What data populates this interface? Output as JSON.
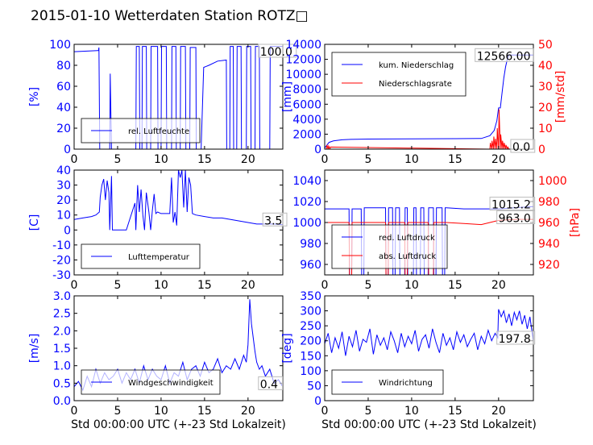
{
  "figure": {
    "title": "2015-01-10 Wetterdaten Station ROTZ□"
  },
  "chart_data": [
    {
      "id": "p1",
      "type": "line",
      "title": "",
      "xlabel": "",
      "xlim": [
        0,
        24
      ],
      "xticks": [
        0,
        5,
        10,
        15,
        20
      ],
      "ylabel": "[%]",
      "ylim": [
        0,
        100
      ],
      "yticks": [
        0,
        20,
        40,
        60,
        80,
        100
      ],
      "annotations": [
        {
          "text": "100.0",
          "x": 21.2,
          "y": 100
        }
      ],
      "legend": {
        "position": "bottom-left",
        "entries": [
          "rel. Luftfeuchte"
        ]
      },
      "series": [
        {
          "name": "rel. Luftfeuchte",
          "color": "#0000ff",
          "x": [
            0,
            2.7,
            2.8,
            2.85,
            2.95,
            3.0,
            4.1,
            4.15,
            4.3,
            4.35,
            7.1,
            7.15,
            7.5,
            7.55,
            7.8,
            7.85,
            8.3,
            8.35,
            8.8,
            8.85,
            9.6,
            9.65,
            10.0,
            10.05,
            10.6,
            10.65,
            11.2,
            11.25,
            11.7,
            11.75,
            12.2,
            12.25,
            12.8,
            12.85,
            13.3,
            13.35,
            14.0,
            14.05,
            14.6,
            14.9,
            15.5,
            16.5,
            17.5,
            17.55,
            17.9,
            17.95,
            18.3,
            18.35,
            18.7,
            18.75,
            19.2,
            19.25,
            19.8,
            19.85,
            20.3,
            20.35,
            20.8,
            20.85,
            21.3,
            21.35,
            22.5,
            22.55,
            23.0,
            23.05,
            24
          ],
          "values": [
            93,
            94,
            94,
            97,
            0,
            0,
            0,
            72,
            0,
            0,
            0,
            98,
            98,
            0,
            0,
            98,
            98,
            0,
            0,
            98,
            98,
            0,
            0,
            98,
            98,
            0,
            0,
            98,
            98,
            0,
            0,
            98,
            98,
            0,
            0,
            97,
            97,
            0,
            0,
            78,
            80,
            84,
            85,
            0,
            0,
            98,
            98,
            0,
            0,
            98,
            98,
            0,
            0,
            98,
            98,
            0,
            0,
            98,
            98,
            0,
            0,
            98,
            98,
            98,
            98
          ]
        }
      ]
    },
    {
      "id": "p2",
      "type": "line",
      "title": "",
      "xlabel": "",
      "xlim": [
        0,
        24
      ],
      "xticks": [
        0,
        5,
        10,
        15,
        20
      ],
      "ylabel": "[mm]",
      "ylim": [
        0,
        14000
      ],
      "yticks": [
        0,
        2000,
        4000,
        6000,
        8000,
        10000,
        12000,
        14000
      ],
      "y2label": "[mm/std]",
      "y2lim": [
        0,
        50
      ],
      "y2ticks": [
        0,
        10,
        20,
        30,
        40,
        50
      ],
      "annotations": [
        {
          "text": "12566.00",
          "x": 17.3,
          "y": 12566
        },
        {
          "text": "0.0",
          "x": 21.4,
          "y": 0
        }
      ],
      "legend": {
        "position": "top-left",
        "entries": [
          "kum. Niederschlag",
          "Niederschlagsrate"
        ]
      },
      "series": [
        {
          "name": "kum. Niederschlag",
          "color": "#0000ff",
          "axis": "left",
          "x": [
            0,
            0.5,
            1,
            2,
            3,
            5,
            10,
            15,
            18,
            19,
            19.5,
            19.8,
            20.0,
            20.2,
            20.4,
            20.6,
            20.8,
            21.0,
            21.2,
            22,
            24
          ],
          "values": [
            150,
            900,
            1100,
            1250,
            1300,
            1350,
            1380,
            1400,
            1420,
            1800,
            2500,
            3800,
            5500,
            5500,
            7500,
            9500,
            11000,
            12000,
            12566,
            12566,
            12566
          ]
        },
        {
          "name": "Niederschlagsrate",
          "color": "#ff0000",
          "axis": "right",
          "x": [
            0,
            0.2,
            0.25,
            0.4,
            0.45,
            0.6,
            0.65,
            19.0,
            19.05,
            19.2,
            19.25,
            19.4,
            19.45,
            19.6,
            19.65,
            19.8,
            19.85,
            20.0,
            20.05,
            20.2,
            20.25,
            20.4,
            20.45,
            20.6,
            20.65,
            20.8,
            20.85,
            21.0,
            21.05,
            21.2,
            21.25,
            24
          ],
          "values": [
            0,
            0,
            2,
            0,
            1.5,
            0,
            1,
            0,
            3,
            0,
            4,
            0,
            6,
            0,
            5,
            0,
            10,
            0,
            19,
            0,
            7,
            0,
            4,
            0,
            3,
            0,
            2,
            0,
            1,
            0,
            0,
            0
          ]
        }
      ]
    },
    {
      "id": "p3",
      "type": "line",
      "title": "",
      "xlabel": "",
      "xlim": [
        0,
        24
      ],
      "xticks": [
        0,
        5,
        10,
        15,
        20
      ],
      "ylabel": "[C]",
      "ylim": [
        -30,
        40
      ],
      "yticks": [
        -30,
        -20,
        -10,
        0,
        10,
        20,
        30,
        40
      ],
      "annotations": [
        {
          "text": "3.5",
          "x": 21.7,
          "y": 7
        }
      ],
      "legend": {
        "position": "bottom-left",
        "entries": [
          "Lufttemperatur"
        ]
      },
      "series": [
        {
          "name": "Lufttemperatur",
          "color": "#0000ff",
          "x": [
            0,
            1,
            2,
            2.5,
            2.9,
            3.0,
            3.2,
            3.4,
            3.6,
            3.8,
            4.0,
            4.1,
            4.3,
            4.4,
            4.6,
            5.0,
            6.0,
            7.0,
            7.1,
            7.3,
            7.5,
            7.7,
            7.9,
            8.1,
            8.3,
            8.6,
            8.8,
            9.0,
            9.2,
            9.4,
            9.6,
            10.0,
            10.5,
            11.0,
            11.2,
            11.4,
            11.6,
            11.8,
            12.0,
            12.2,
            12.4,
            12.6,
            12.8,
            13.0,
            13.2,
            13.4,
            13.6,
            14.0,
            15.0,
            16.0,
            17.0,
            18.0,
            19.0,
            20.0,
            21.0,
            22.0,
            23.0,
            24
          ],
          "values": [
            7,
            8,
            9,
            10,
            12,
            22,
            30,
            34,
            20,
            33,
            25,
            0,
            36,
            0,
            0,
            0,
            0,
            18,
            0,
            30,
            12,
            27,
            10,
            0,
            25,
            12,
            0,
            13,
            24,
            11,
            12,
            11,
            11,
            11,
            35,
            5,
            12,
            3,
            40,
            35,
            40,
            15,
            40,
            12,
            35,
            30,
            11,
            10,
            9,
            8,
            8,
            7,
            6,
            5,
            4,
            4,
            4,
            3.5
          ]
        }
      ]
    },
    {
      "id": "p4",
      "type": "line",
      "title": "",
      "xlabel": "",
      "xlim": [
        0,
        24
      ],
      "xticks": [
        0,
        5,
        10,
        15,
        20
      ],
      "ylabel": "",
      "ylim": [
        950,
        1050
      ],
      "yticks": [
        960,
        980,
        1000,
        1020,
        1040
      ],
      "y2label": "[hPa]",
      "y2lim": [
        910,
        1010
      ],
      "y2ticks": [
        920,
        940,
        960,
        980,
        1000
      ],
      "annotations": [
        {
          "text": "1015.2",
          "x": 19.0,
          "y": 1018
        },
        {
          "text": "963.0",
          "x": 19.8,
          "y": 1005
        }
      ],
      "legend": {
        "position": "bottom-left",
        "entries": [
          "red. Luftdruck",
          "abs. Luftdruck"
        ]
      },
      "series": [
        {
          "name": "red. Luftdruck",
          "color": "#0000ff",
          "axis": "left",
          "x": [
            0,
            2.8,
            2.85,
            3.1,
            3.15,
            4.2,
            4.25,
            4.5,
            4.55,
            7.0,
            7.05,
            7.3,
            7.35,
            7.8,
            7.85,
            8.1,
            8.15,
            8.6,
            8.65,
            9.2,
            9.25,
            9.5,
            9.55,
            10.2,
            10.25,
            10.5,
            10.55,
            11.0,
            11.05,
            11.4,
            11.45,
            11.9,
            11.95,
            12.5,
            12.55,
            12.8,
            12.85,
            13.5,
            13.55,
            13.8,
            13.85,
            14.0,
            16.0,
            18.0,
            20.0,
            24
          ],
          "values": [
            1013,
            1013,
            950,
            950,
            1013,
            1013,
            950,
            950,
            1014,
            1014,
            950,
            950,
            1014,
            1014,
            950,
            950,
            1014,
            1014,
            950,
            950,
            1014,
            1014,
            950,
            950,
            1014,
            1014,
            950,
            950,
            1014,
            1014,
            950,
            950,
            1014,
            1014,
            950,
            950,
            1014,
            1014,
            950,
            950,
            1014,
            1014,
            1013,
            1013,
            1013,
            1015.2
          ]
        },
        {
          "name": "abs. Luftdruck",
          "color": "#ff0000",
          "axis": "right",
          "x": [
            0,
            2.8,
            2.85,
            3.1,
            3.15,
            7.0,
            7.05,
            7.3,
            7.35,
            9.2,
            9.25,
            9.5,
            9.55,
            11.9,
            11.95,
            12.5,
            12.55,
            14.0,
            16.0,
            18.0,
            19.0,
            20.0,
            22.0,
            24
          ],
          "values": [
            960,
            960,
            910,
            910,
            960,
            960,
            910,
            910,
            960,
            960,
            910,
            910,
            960,
            960,
            910,
            910,
            960,
            960,
            959,
            958,
            960,
            962,
            963,
            963
          ]
        }
      ]
    },
    {
      "id": "p5",
      "type": "line",
      "title": "",
      "xlabel": "Std 00:00:00 UTC (+-23 Std Lokalzeit)",
      "xlim": [
        0,
        24
      ],
      "xticks": [
        0,
        5,
        10,
        15,
        20
      ],
      "ylabel": "[m/s]",
      "ylim": [
        0,
        3.0
      ],
      "yticks": [
        0.0,
        0.5,
        1.0,
        1.5,
        2.0,
        2.5,
        3.0
      ],
      "annotations": [
        {
          "text": "0.4",
          "x": 21.2,
          "y": 0.5
        }
      ],
      "legend": {
        "position": "bottom-left",
        "entries": [
          "Windgeschwindigkeit"
        ]
      },
      "series": [
        {
          "name": "Windgeschwindigkeit",
          "color": "#0000ff",
          "x": [
            0,
            0.5,
            1,
            1.5,
            2,
            2.5,
            3,
            3.5,
            4,
            4.5,
            5,
            5.5,
            6,
            6.5,
            7,
            7.5,
            8,
            8.5,
            9,
            9.5,
            10,
            10.5,
            11,
            11.5,
            12,
            12.5,
            13,
            13.5,
            14,
            14.5,
            15,
            15.5,
            16,
            16.5,
            17,
            17.5,
            18,
            18.5,
            19,
            19.5,
            19.8,
            20.0,
            20.2,
            20.4,
            20.6,
            20.8,
            21.0,
            21.3,
            21.6,
            22.0,
            22.5,
            23.0,
            23.5,
            24
          ],
          "values": [
            0.4,
            0.55,
            0.3,
            0.7,
            0.4,
            0.9,
            0.5,
            0.8,
            0.6,
            0.7,
            0.9,
            0.5,
            0.8,
            0.6,
            0.9,
            0.5,
            1.0,
            0.6,
            0.9,
            0.7,
            0.6,
            1.0,
            0.5,
            0.8,
            0.7,
            1.1,
            0.6,
            0.9,
            1.0,
            0.7,
            1.1,
            0.8,
            0.9,
            1.2,
            0.8,
            1.0,
            0.9,
            1.2,
            0.9,
            1.3,
            1.1,
            1.6,
            2.9,
            2.2,
            1.8,
            1.4,
            1.1,
            0.9,
            1.0,
            0.7,
            0.9,
            0.5,
            0.6,
            0.4
          ]
        }
      ]
    },
    {
      "id": "p6",
      "type": "line",
      "title": "",
      "xlabel": "Std 00:00:00 UTC (+-23 Std Lokalzeit)",
      "xlim": [
        0,
        24
      ],
      "xticks": [
        0,
        5,
        10,
        15,
        20
      ],
      "ylabel": "[deg]",
      "ylim": [
        0,
        350
      ],
      "yticks": [
        0,
        50,
        100,
        150,
        200,
        250,
        300,
        350
      ],
      "annotations": [
        {
          "text": "197.8",
          "x": 19.8,
          "y": 210
        }
      ],
      "legend": {
        "position": "bottom-left",
        "entries": [
          "Windrichtung"
        ]
      },
      "series": [
        {
          "name": "Windrichtung",
          "color": "#0000ff",
          "x": [
            0,
            0.4,
            0.8,
            1.2,
            1.6,
            2.0,
            2.4,
            2.8,
            3.2,
            3.6,
            4.0,
            4.4,
            4.8,
            5.2,
            5.6,
            6.0,
            6.4,
            6.8,
            7.2,
            7.6,
            8.0,
            8.4,
            8.8,
            9.2,
            9.6,
            10.0,
            10.4,
            10.8,
            11.2,
            11.6,
            12.0,
            12.4,
            12.8,
            13.2,
            13.6,
            14.0,
            14.4,
            14.8,
            15.2,
            15.6,
            16.0,
            16.4,
            16.8,
            17.2,
            17.6,
            18.0,
            18.4,
            18.8,
            19.2,
            19.6,
            19.9,
            20.0,
            20.3,
            20.6,
            20.9,
            21.2,
            21.5,
            21.8,
            22.1,
            22.4,
            22.7,
            23.0,
            23.3,
            23.6,
            24
          ],
          "values": [
            190,
            225,
            160,
            210,
            175,
            230,
            150,
            215,
            180,
            235,
            165,
            205,
            195,
            240,
            155,
            220,
            185,
            210,
            170,
            230,
            200,
            160,
            225,
            180,
            215,
            190,
            235,
            165,
            205,
            220,
            175,
            240,
            195,
            160,
            225,
            185,
            210,
            170,
            230,
            195,
            220,
            180,
            205,
            225,
            170,
            215,
            190,
            235,
            200,
            225,
            210,
            305,
            280,
            300,
            260,
            290,
            250,
            295,
            270,
            300,
            255,
            285,
            240,
            280,
            197.8
          ]
        }
      ]
    }
  ]
}
